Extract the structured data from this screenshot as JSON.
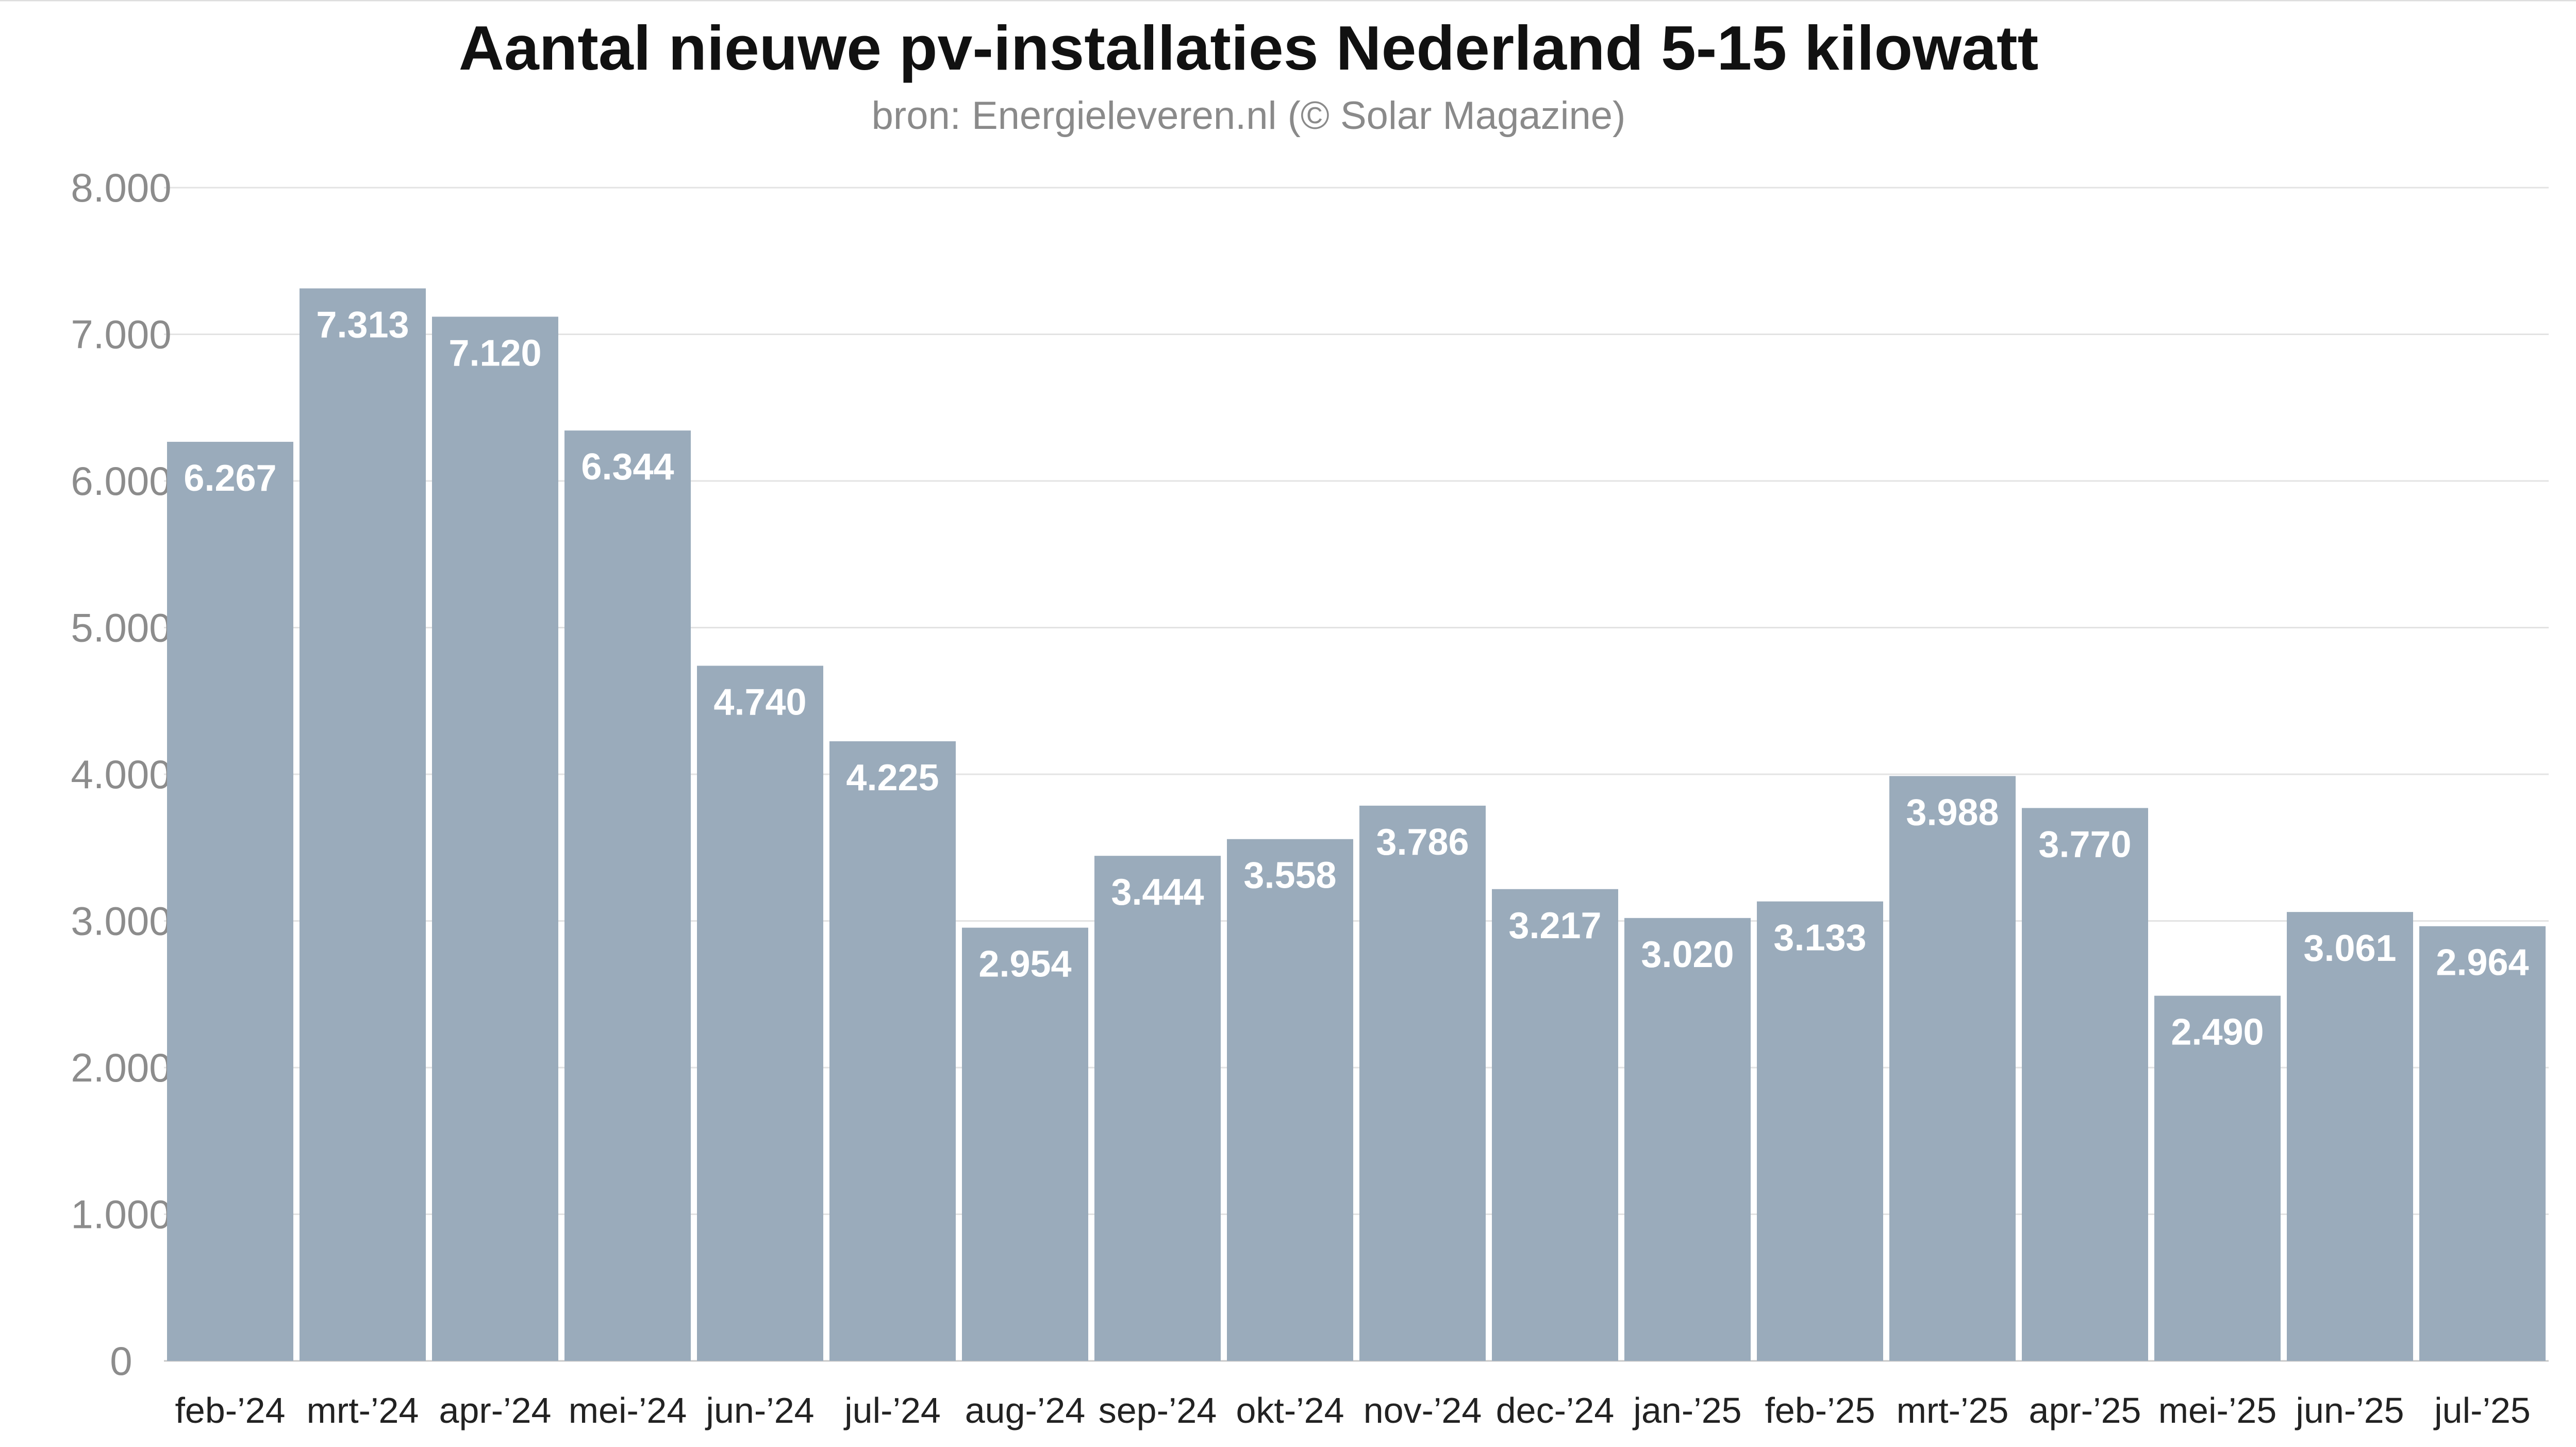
{
  "chart_data": {
    "type": "bar",
    "title": "Aantal nieuwe pv-installaties Nederland 5-15 kilowatt",
    "subtitle": "bron: Energieleveren.nl (© Solar Magazine)",
    "xlabel": "",
    "ylabel": "",
    "ylim": [
      0,
      8000
    ],
    "yticks": [
      "0",
      "1.000",
      "2.000",
      "3.000",
      "4.000",
      "5.000",
      "6.000",
      "7.000",
      "8.000"
    ],
    "grid": true,
    "bar_color": "#9aabbb",
    "categories": [
      "feb-’24",
      "mrt-’24",
      "apr-’24",
      "mei-’24",
      "jun-’24",
      "jul-’24",
      "aug-’24",
      "sep-’24",
      "okt-’24",
      "nov-’24",
      "dec-’24",
      "jan-’25",
      "feb-’25",
      "mrt-’25",
      "apr-’25",
      "mei-’25",
      "jun-’25",
      "jul-’25"
    ],
    "values": [
      6267,
      7313,
      7120,
      6344,
      4740,
      4225,
      2954,
      3444,
      3558,
      3786,
      3217,
      3020,
      3133,
      3988,
      3770,
      2490,
      3061,
      2964
    ],
    "value_labels": [
      "6.267",
      "7.313",
      "7.120",
      "6.344",
      "4.740",
      "4.225",
      "2.954",
      "3.444",
      "3.558",
      "3.786",
      "3.217",
      "3.020",
      "3.133",
      "3.988",
      "3.770",
      "2.490",
      "3.061",
      "2.964"
    ]
  }
}
